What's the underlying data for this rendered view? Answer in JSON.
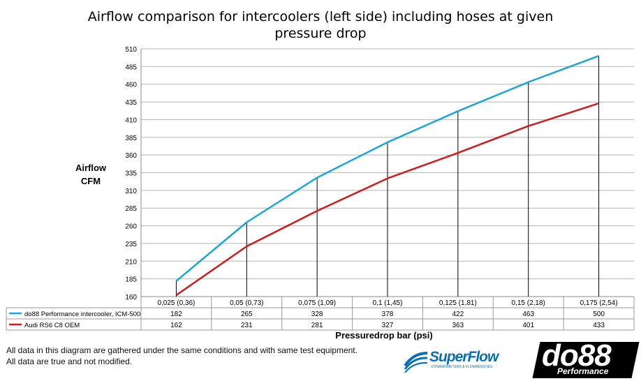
{
  "chart_data": {
    "type": "line",
    "title_line1": "Airflow comparison for intercoolers (left side) including hoses at given",
    "title_line2": "pressure drop",
    "ylabel_line1": "Airflow",
    "ylabel_line2": "CFM",
    "xlabel": "Pressuredrop bar (psi)",
    "ylim": [
      160,
      510
    ],
    "yticks": [
      160,
      185,
      210,
      235,
      260,
      285,
      310,
      335,
      360,
      385,
      410,
      435,
      460,
      485,
      510
    ],
    "categories": [
      "0,025 (0,36)",
      "0,05 (0,73)",
      "0,075 (1,09)",
      "0,1 (1,45)",
      "0,125 (1,81)",
      "0,15 (2,18)",
      "0,175 (2,54)"
    ],
    "series": [
      {
        "name": "do88 Performance intercooler, ICM-500",
        "color": "#1aa7d8",
        "values": [
          182,
          265,
          328,
          378,
          422,
          463,
          500
        ]
      },
      {
        "name": "Audi RS6 C8 OEM",
        "color": "#d21a1a",
        "values": [
          162,
          231,
          281,
          327,
          363,
          401,
          433
        ]
      }
    ],
    "data_table": true,
    "drop_lines": true
  },
  "notes": {
    "line1": "All data in this diagram are gathered under the same conditions and with same test equipment.",
    "line2": "All data are true and not modified."
  },
  "logos": {
    "superflow_name": "SuperFlow",
    "superflow_tagline": "DYNAMOMETERS & FLOWBENCHES",
    "do88_name": "do88",
    "do88_sub": "Performance"
  }
}
